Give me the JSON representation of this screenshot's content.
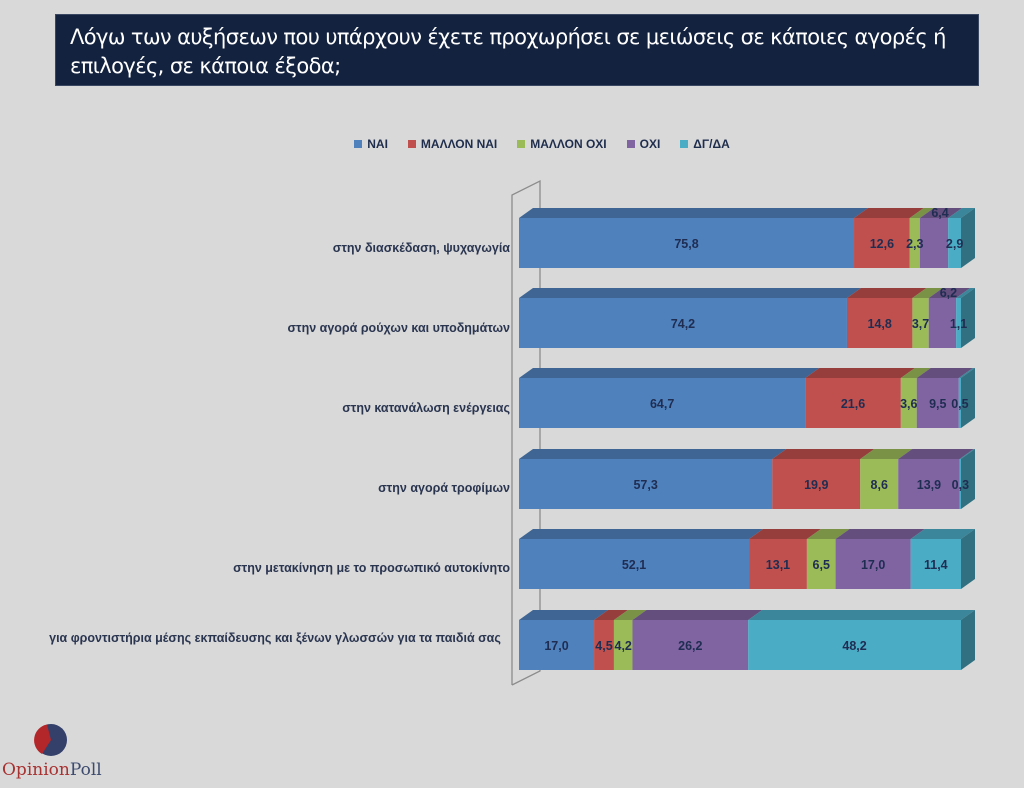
{
  "title": "Λόγω των αυξήσεων που υπάρχουν έχετε προχωρήσει σε μειώσεις σε κάποιες αγορές ή επιλογές, σε κάποια έξοδα;",
  "logo": {
    "part1": "Opinion",
    "part2": "Poll",
    "icon": "pie-logo-icon"
  },
  "chart_data": {
    "type": "bar",
    "orientation": "horizontal-stacked-100-3d",
    "title": "Λόγω των αυξήσεων που υπάρχουν έχετε προχωρήσει σε μειώσεις σε κάποιες αγορές ή επιλογές, σε κάποια έξοδα;",
    "xlabel": "",
    "ylabel": "",
    "xlim": [
      0,
      100
    ],
    "grid": false,
    "legend_position": "top-center",
    "categories": [
      "στην διασκέδαση, ψυχαγωγία",
      "στην αγορά ρούχων και υποδημάτων",
      "στην κατανάλωση ενέργειας",
      "στην αγορά τροφίμων",
      "στην μετακίνηση με το προσωπικό αυτοκίνητο",
      "για φροντιστήρια μέσης εκπαίδευσης και ξένων γλωσσών για τα παιδιά σας"
    ],
    "series": [
      {
        "name": "ΝΑΙ",
        "color": "#4f81bd",
        "values": [
          75.8,
          74.2,
          64.7,
          57.3,
          52.1,
          17.0
        ],
        "labels": [
          "75,8",
          "74,2",
          "64,7",
          "57,3",
          "52,1",
          "17,0"
        ]
      },
      {
        "name": "ΜΑΛΛΟΝ ΝΑΙ",
        "color": "#c0504d",
        "values": [
          12.6,
          14.8,
          21.6,
          19.9,
          13.1,
          4.5
        ],
        "labels": [
          "12,6",
          "14,8",
          "21,6",
          "19,9",
          "13,1",
          "4,5"
        ]
      },
      {
        "name": "ΜΑΛΛΟΝ ΟΧΙ",
        "color": "#9bbb59",
        "values": [
          2.3,
          3.7,
          3.6,
          8.6,
          6.5,
          4.2
        ],
        "labels": [
          "2,3",
          "3,7",
          "3,6",
          "8,6",
          "6,5",
          "4,2"
        ]
      },
      {
        "name": "ΟΧΙ",
        "color": "#8064a2",
        "values": [
          6.4,
          6.2,
          9.5,
          13.9,
          17.0,
          26.2
        ],
        "labels": [
          "6,4",
          "6,2",
          "9,5",
          "13,9",
          "17,0",
          "26,2"
        ]
      },
      {
        "name": "ΔΓ/ΔΑ",
        "color": "#4bacc6",
        "values": [
          2.9,
          1.1,
          0.5,
          0.3,
          11.4,
          48.2
        ],
        "labels": [
          "2,9",
          "1,1",
          "0,5",
          "0,3",
          "11,4",
          "48,2"
        ]
      }
    ]
  }
}
